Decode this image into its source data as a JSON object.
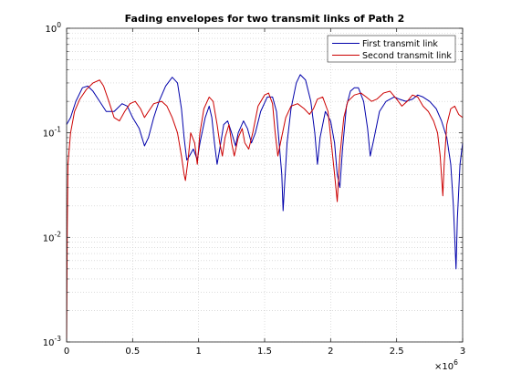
{
  "chart_data": {
    "type": "line",
    "title": "Fading envelopes for two transmit links of Path 2",
    "xlabel": "",
    "ylabel": "",
    "x_multiplier_label": "×10",
    "x_multiplier_exponent": "6",
    "xlim": [
      0,
      3
    ],
    "ylim": [
      0.001,
      1
    ],
    "yscale": "log",
    "grid": true,
    "grid_style": "dotted",
    "legend_position": "top-right",
    "x_ticks": [
      {
        "value": 0,
        "label": "0"
      },
      {
        "value": 0.5,
        "label": "0.5"
      },
      {
        "value": 1,
        "label": "1"
      },
      {
        "value": 1.5,
        "label": "1.5"
      },
      {
        "value": 2,
        "label": "2"
      },
      {
        "value": 2.5,
        "label": "2.5"
      },
      {
        "value": 3,
        "label": "3"
      }
    ],
    "y_ticks": [
      {
        "value": 0.001,
        "base": "10",
        "exp": "-3"
      },
      {
        "value": 0.01,
        "base": "10",
        "exp": "-2"
      },
      {
        "value": 0.1,
        "base": "10",
        "exp": "-1"
      },
      {
        "value": 1,
        "base": "10",
        "exp": "0"
      }
    ],
    "series": [
      {
        "name": "First transmit link",
        "color": "#0000aa",
        "points": [
          [
            0.0,
            0.12
          ],
          [
            0.03,
            0.14
          ],
          [
            0.07,
            0.2
          ],
          [
            0.12,
            0.27
          ],
          [
            0.16,
            0.28
          ],
          [
            0.2,
            0.25
          ],
          [
            0.25,
            0.2
          ],
          [
            0.3,
            0.16
          ],
          [
            0.36,
            0.16
          ],
          [
            0.42,
            0.19
          ],
          [
            0.46,
            0.18
          ],
          [
            0.5,
            0.14
          ],
          [
            0.55,
            0.11
          ],
          [
            0.59,
            0.075
          ],
          [
            0.62,
            0.09
          ],
          [
            0.66,
            0.14
          ],
          [
            0.7,
            0.2
          ],
          [
            0.75,
            0.28
          ],
          [
            0.8,
            0.34
          ],
          [
            0.84,
            0.3
          ],
          [
            0.87,
            0.17
          ],
          [
            0.89,
            0.09
          ],
          [
            0.91,
            0.055
          ],
          [
            0.93,
            0.06
          ],
          [
            0.96,
            0.07
          ],
          [
            0.99,
            0.055
          ],
          [
            1.01,
            0.08
          ],
          [
            1.05,
            0.14
          ],
          [
            1.08,
            0.18
          ],
          [
            1.1,
            0.14
          ],
          [
            1.12,
            0.08
          ],
          [
            1.14,
            0.05
          ],
          [
            1.16,
            0.07
          ],
          [
            1.19,
            0.12
          ],
          [
            1.22,
            0.13
          ],
          [
            1.25,
            0.1
          ],
          [
            1.28,
            0.075
          ],
          [
            1.3,
            0.1
          ],
          [
            1.34,
            0.13
          ],
          [
            1.37,
            0.11
          ],
          [
            1.4,
            0.08
          ],
          [
            1.43,
            0.1
          ],
          [
            1.47,
            0.16
          ],
          [
            1.52,
            0.22
          ],
          [
            1.56,
            0.22
          ],
          [
            1.59,
            0.16
          ],
          [
            1.61,
            0.08
          ],
          [
            1.63,
            0.04
          ],
          [
            1.64,
            0.018
          ],
          [
            1.65,
            0.03
          ],
          [
            1.67,
            0.08
          ],
          [
            1.7,
            0.17
          ],
          [
            1.74,
            0.3
          ],
          [
            1.77,
            0.36
          ],
          [
            1.81,
            0.32
          ],
          [
            1.85,
            0.2
          ],
          [
            1.88,
            0.1
          ],
          [
            1.9,
            0.05
          ],
          [
            1.92,
            0.09
          ],
          [
            1.96,
            0.16
          ],
          [
            2.0,
            0.13
          ],
          [
            2.03,
            0.08
          ],
          [
            2.05,
            0.04
          ],
          [
            2.07,
            0.03
          ],
          [
            2.09,
            0.07
          ],
          [
            2.12,
            0.18
          ],
          [
            2.15,
            0.25
          ],
          [
            2.18,
            0.27
          ],
          [
            2.21,
            0.27
          ],
          [
            2.25,
            0.2
          ],
          [
            2.28,
            0.11
          ],
          [
            2.3,
            0.06
          ],
          [
            2.33,
            0.09
          ],
          [
            2.37,
            0.16
          ],
          [
            2.42,
            0.2
          ],
          [
            2.48,
            0.22
          ],
          [
            2.52,
            0.21
          ],
          [
            2.57,
            0.2
          ],
          [
            2.62,
            0.21
          ],
          [
            2.66,
            0.23
          ],
          [
            2.7,
            0.22
          ],
          [
            2.75,
            0.2
          ],
          [
            2.8,
            0.17
          ],
          [
            2.84,
            0.13
          ],
          [
            2.88,
            0.09
          ],
          [
            2.91,
            0.05
          ],
          [
            2.93,
            0.02
          ],
          [
            2.95,
            0.005
          ],
          [
            2.96,
            0.015
          ],
          [
            2.98,
            0.05
          ],
          [
            3.0,
            0.08
          ]
        ]
      },
      {
        "name": "Second transmit link",
        "color": "#cc0000",
        "points": [
          [
            0.0,
            0.001
          ],
          [
            0.005,
            0.012
          ],
          [
            0.01,
            0.05
          ],
          [
            0.03,
            0.1
          ],
          [
            0.06,
            0.16
          ],
          [
            0.1,
            0.21
          ],
          [
            0.15,
            0.26
          ],
          [
            0.2,
            0.3
          ],
          [
            0.25,
            0.32
          ],
          [
            0.28,
            0.28
          ],
          [
            0.32,
            0.2
          ],
          [
            0.36,
            0.14
          ],
          [
            0.4,
            0.13
          ],
          [
            0.44,
            0.16
          ],
          [
            0.48,
            0.19
          ],
          [
            0.52,
            0.2
          ],
          [
            0.56,
            0.17
          ],
          [
            0.59,
            0.14
          ],
          [
            0.62,
            0.16
          ],
          [
            0.66,
            0.19
          ],
          [
            0.72,
            0.2
          ],
          [
            0.76,
            0.18
          ],
          [
            0.8,
            0.14
          ],
          [
            0.84,
            0.1
          ],
          [
            0.87,
            0.06
          ],
          [
            0.89,
            0.04
          ],
          [
            0.9,
            0.035
          ],
          [
            0.92,
            0.055
          ],
          [
            0.94,
            0.1
          ],
          [
            0.97,
            0.08
          ],
          [
            0.99,
            0.05
          ],
          [
            1.01,
            0.1
          ],
          [
            1.04,
            0.17
          ],
          [
            1.08,
            0.22
          ],
          [
            1.11,
            0.2
          ],
          [
            1.14,
            0.12
          ],
          [
            1.16,
            0.08
          ],
          [
            1.18,
            0.06
          ],
          [
            1.2,
            0.09
          ],
          [
            1.23,
            0.12
          ],
          [
            1.25,
            0.08
          ],
          [
            1.27,
            0.06
          ],
          [
            1.3,
            0.09
          ],
          [
            1.33,
            0.11
          ],
          [
            1.35,
            0.08
          ],
          [
            1.38,
            0.07
          ],
          [
            1.41,
            0.1
          ],
          [
            1.45,
            0.18
          ],
          [
            1.5,
            0.23
          ],
          [
            1.53,
            0.24
          ],
          [
            1.56,
            0.19
          ],
          [
            1.58,
            0.1
          ],
          [
            1.6,
            0.06
          ],
          [
            1.62,
            0.08
          ],
          [
            1.66,
            0.14
          ],
          [
            1.7,
            0.18
          ],
          [
            1.75,
            0.19
          ],
          [
            1.8,
            0.17
          ],
          [
            1.84,
            0.15
          ],
          [
            1.87,
            0.17
          ],
          [
            1.9,
            0.21
          ],
          [
            1.94,
            0.22
          ],
          [
            1.98,
            0.16
          ],
          [
            2.01,
            0.07
          ],
          [
            2.03,
            0.04
          ],
          [
            2.05,
            0.022
          ],
          [
            2.07,
            0.06
          ],
          [
            2.1,
            0.14
          ],
          [
            2.13,
            0.2
          ],
          [
            2.18,
            0.23
          ],
          [
            2.23,
            0.24
          ],
          [
            2.27,
            0.22
          ],
          [
            2.31,
            0.2
          ],
          [
            2.35,
            0.21
          ],
          [
            2.4,
            0.24
          ],
          [
            2.45,
            0.25
          ],
          [
            2.5,
            0.21
          ],
          [
            2.54,
            0.18
          ],
          [
            2.58,
            0.2
          ],
          [
            2.62,
            0.23
          ],
          [
            2.66,
            0.22
          ],
          [
            2.7,
            0.18
          ],
          [
            2.74,
            0.16
          ],
          [
            2.78,
            0.13
          ],
          [
            2.81,
            0.1
          ],
          [
            2.83,
            0.06
          ],
          [
            2.85,
            0.025
          ],
          [
            2.86,
            0.05
          ],
          [
            2.88,
            0.12
          ],
          [
            2.91,
            0.17
          ],
          [
            2.94,
            0.18
          ],
          [
            2.97,
            0.15
          ],
          [
            3.0,
            0.14
          ]
        ]
      }
    ]
  }
}
